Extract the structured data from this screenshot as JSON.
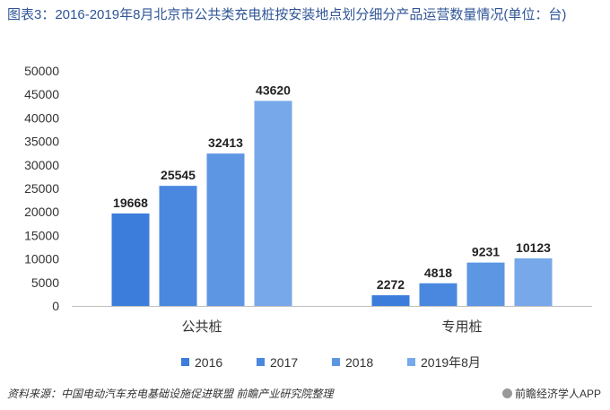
{
  "page": {
    "title": "图表3：2016-2019年8月北京市公共类充电桩按安装地点划分细分产品运营数量情况(单位：台)",
    "source": "资料来源：中国电动汽车充电基础设施促进联盟 前瞻产业研究院整理",
    "brand": "前瞻经济学人APP"
  },
  "chart_data": {
    "type": "bar",
    "categories": [
      "公共桩",
      "专用桩"
    ],
    "series": [
      {
        "name": "2016",
        "color": "#3c7ddb",
        "values": [
          19668,
          2272
        ]
      },
      {
        "name": "2017",
        "color": "#4a88df",
        "values": [
          25545,
          4818
        ]
      },
      {
        "name": "2018",
        "color": "#5d96e3",
        "values": [
          32413,
          9231
        ]
      },
      {
        "name": "2019年8月",
        "color": "#77a8ea",
        "values": [
          43620,
          10123
        ]
      }
    ],
    "ylim": [
      0,
      50000
    ],
    "yticks": [
      0,
      5000,
      10000,
      15000,
      20000,
      25000,
      30000,
      35000,
      40000,
      45000,
      50000
    ],
    "grid": false,
    "legend": "bottom",
    "data_labels": true
  }
}
